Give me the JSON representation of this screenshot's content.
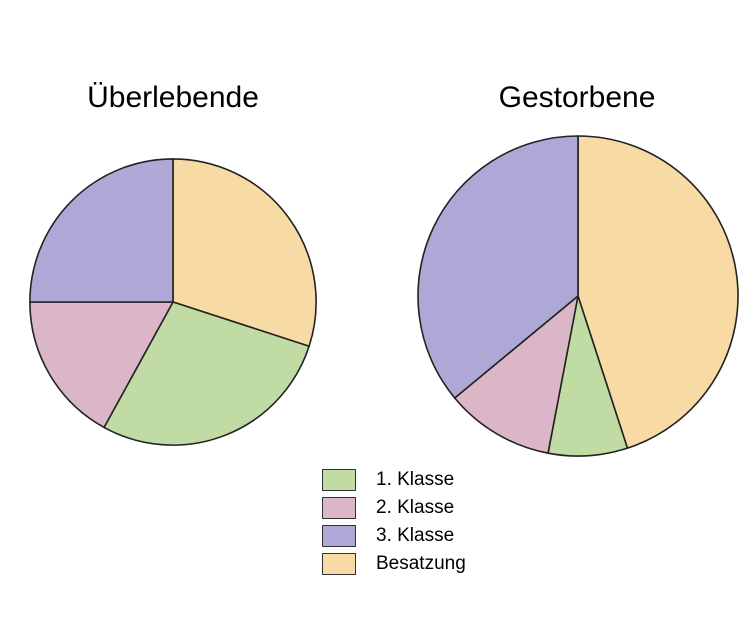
{
  "chart_data": [
    {
      "type": "pie",
      "title": "Überlebende",
      "slices": [
        {
          "label": "1. Klasse",
          "value": 28,
          "color": "#c0dba4"
        },
        {
          "label": "2. Klasse",
          "value": 17,
          "color": "#dbb6c7"
        },
        {
          "label": "3. Klasse",
          "value": 25,
          "color": "#ada8d6"
        },
        {
          "label": "Besatzung",
          "value": 30,
          "color": "#f8dba4"
        }
      ],
      "total_relative_size": 0.8
    },
    {
      "type": "pie",
      "title": "Gestorbene",
      "slices": [
        {
          "label": "1. Klasse",
          "value": 8,
          "color": "#c0dba4"
        },
        {
          "label": "2. Klasse",
          "value": 11,
          "color": "#dbb6c7"
        },
        {
          "label": "3. Klasse",
          "value": 36,
          "color": "#ada8d6"
        },
        {
          "label": "Besatzung",
          "value": 45,
          "color": "#f8dba4"
        }
      ],
      "total_relative_size": 1.0
    }
  ],
  "legend": [
    {
      "label": "1. Klasse",
      "color": "#c0dba4"
    },
    {
      "label": "2. Klasse",
      "color": "#dbb6c7"
    },
    {
      "label": "3. Klasse",
      "color": "#ada8d6"
    },
    {
      "label": "Besatzung",
      "color": "#f8dba4"
    }
  ]
}
